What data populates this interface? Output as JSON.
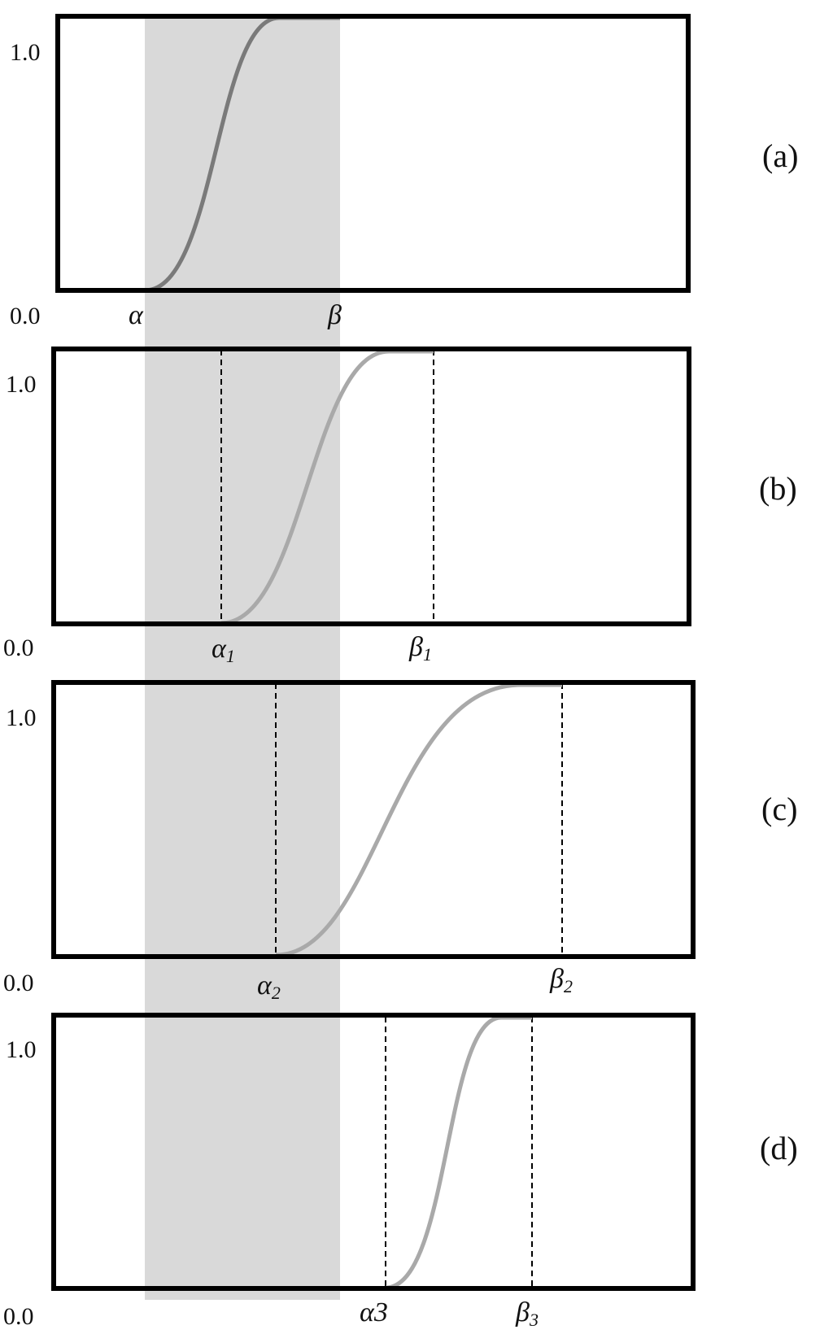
{
  "colors": {
    "band": "#d9d9d9",
    "frame": "#000000",
    "curve_panel_a": "#7a7a7a",
    "curve_other": "#a9a9a9",
    "dashed": "#000000"
  },
  "panels": [
    {
      "label": "(a)",
      "y_top_label": "1.0",
      "y_bottom_label": "0.0",
      "alpha_label": "α",
      "alpha_sub": "",
      "beta_label": "β",
      "beta_sub": "",
      "dashed_markers": false
    },
    {
      "label": "(b)",
      "y_top_label": "1.0",
      "y_bottom_label": "0.0",
      "alpha_label": "α",
      "alpha_sub": "1",
      "beta_label": "β",
      "beta_sub": "1",
      "dashed_markers": true
    },
    {
      "label": "(c)",
      "y_top_label": "1.0",
      "y_bottom_label": "0.0",
      "alpha_label": "α",
      "alpha_sub": "2",
      "beta_label": "β",
      "beta_sub": "2",
      "dashed_markers": true
    },
    {
      "label": "(d)",
      "y_top_label": "1.0",
      "y_bottom_label": "0.0",
      "alpha_label": "α3",
      "alpha_sub": "",
      "beta_label": "β",
      "beta_sub": "3",
      "dashed_markers": true
    }
  ]
}
